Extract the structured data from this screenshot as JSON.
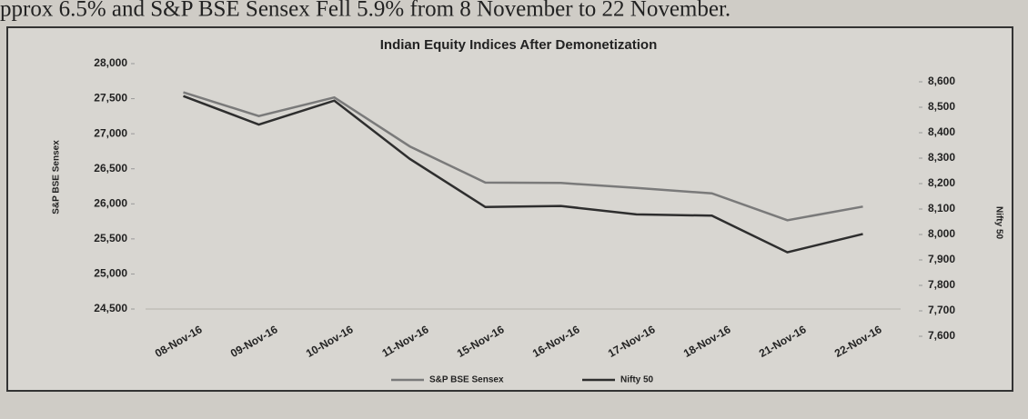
{
  "caption": "pprox 6.5% and S&P BSE Sensex Fell 5.9% from 8 November to 22 November.",
  "chart_data": {
    "type": "line",
    "title": "Indian Equity Indices After Demonetization",
    "y_label": "S&P BSE Sensex",
    "y2_label": "Nifty 50",
    "categories": [
      "08-Nov-16",
      "09-Nov-16",
      "10-Nov-16",
      "11-Nov-16",
      "15-Nov-16",
      "16-Nov-16",
      "17-Nov-16",
      "18-Nov-16",
      "21-Nov-16",
      "22-Nov-16"
    ],
    "series": [
      {
        "name": "S&P BSE Sensex",
        "color": "#7a7a7a",
        "values": [
          27591,
          27252,
          27518,
          26819,
          26304,
          26298,
          26227,
          26150,
          25766,
          25961
        ]
      },
      {
        "name": "Nifty 50",
        "color": "#2e2e2e",
        "axis": "y2",
        "values": [
          8544,
          8432,
          8526,
          8297,
          8108,
          8112,
          8079,
          8074,
          7930,
          8002
        ]
      }
    ],
    "ylim": [
      24500,
      28000
    ],
    "yticks": [
      {
        "value": 24500,
        "label": "24,500"
      },
      {
        "value": 25000,
        "label": "25,000"
      },
      {
        "value": 25500,
        "label": "25,500"
      },
      {
        "value": 26000,
        "label": "26,000"
      },
      {
        "value": 26500,
        "label": "26,500"
      },
      {
        "value": 27000,
        "label": "27,000"
      },
      {
        "value": 27500,
        "label": "27,500"
      },
      {
        "value": 28000,
        "label": "28,000"
      }
    ],
    "y2lim": [
      7600,
      8600
    ],
    "y2ticks": [
      {
        "value": 7600,
        "label": "7,600"
      },
      {
        "value": 7700,
        "label": "7,700"
      },
      {
        "value": 7800,
        "label": "7,800"
      },
      {
        "value": 7900,
        "label": "7,900"
      },
      {
        "value": 8000,
        "label": "8,000"
      },
      {
        "value": 8100,
        "label": "8,100"
      },
      {
        "value": 8200,
        "label": "8,200"
      },
      {
        "value": 8300,
        "label": "8,300"
      },
      {
        "value": 8400,
        "label": "8,400"
      },
      {
        "value": 8500,
        "label": "8,500"
      },
      {
        "value": 8600,
        "label": "8,600"
      }
    ],
    "legend": "bottom"
  }
}
